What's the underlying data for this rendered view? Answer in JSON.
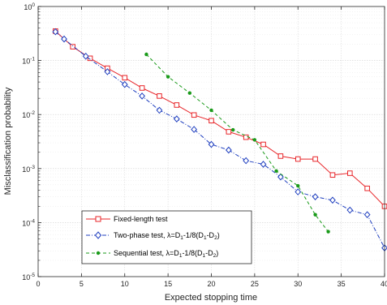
{
  "chart_data": {
    "type": "line",
    "xlabel": "Expected stopping time",
    "ylabel": "Misclassification probability",
    "xlim": [
      0,
      40
    ],
    "ylim": [
      1e-05,
      1
    ],
    "yscale": "log",
    "grid": true,
    "legend_position": "bottom-left",
    "x_ticks": [
      "0",
      "5",
      "10",
      "15",
      "20",
      "25",
      "30",
      "35",
      "40"
    ],
    "y_ticks": [
      {
        "base": "10",
        "exp": "0"
      },
      {
        "base": "10",
        "exp": "-1"
      },
      {
        "base": "10",
        "exp": "-2"
      },
      {
        "base": "10",
        "exp": "-3"
      },
      {
        "base": "10",
        "exp": "-4"
      },
      {
        "base": "10",
        "exp": "-5"
      }
    ],
    "series": [
      {
        "name": "Fixed-length test",
        "color": "#e8262a",
        "line_style": "solid",
        "marker": "square",
        "x": [
          2,
          4,
          6,
          8,
          10,
          12,
          14,
          16,
          18,
          20,
          22,
          24,
          26,
          28,
          30,
          32,
          34,
          36,
          38,
          40
        ],
        "y": [
          0.35,
          0.18,
          0.11,
          0.072,
          0.048,
          0.031,
          0.022,
          0.015,
          0.0098,
          0.0077,
          0.0048,
          0.0038,
          0.0028,
          0.0017,
          0.0015,
          0.0015,
          0.00076,
          0.00082,
          0.00043,
          0.0002
        ]
      },
      {
        "name_parts": {
          "prefix": "Two-phase test, λ=D",
          "sub1": "1",
          "mid": "-1/8(D",
          "sub2": "1",
          "mid2": "-D",
          "sub3": "2",
          "suffix": ")"
        },
        "color": "#1f3fbf",
        "line_style": "dashdot",
        "marker": "diamond",
        "x": [
          2,
          3,
          5.5,
          8,
          10,
          12,
          14,
          16,
          18,
          20,
          22,
          24,
          26,
          28,
          30,
          32,
          34,
          36,
          38,
          40
        ],
        "y": [
          0.34,
          0.25,
          0.12,
          0.062,
          0.036,
          0.022,
          0.012,
          0.0083,
          0.0053,
          0.0028,
          0.0022,
          0.0014,
          0.0012,
          0.0007,
          0.00037,
          0.0003,
          0.00026,
          0.00017,
          0.00014,
          3.4e-05
        ]
      },
      {
        "name_parts": {
          "prefix": "Sequential test, λ=D",
          "sub1": "1",
          "mid": "-1/8(D",
          "sub2": "1",
          "mid2": "-D",
          "sub3": "2",
          "suffix": ")"
        },
        "color": "#1a9a1a",
        "line_style": "dashed",
        "marker": "dot",
        "x": [
          12.5,
          15,
          17.5,
          20,
          22.5,
          25,
          27.5,
          30,
          32,
          33.5
        ],
        "y": [
          0.13,
          0.05,
          0.025,
          0.012,
          0.0052,
          0.0034,
          0.0009,
          0.00048,
          0.00014,
          6.8e-05
        ]
      }
    ]
  }
}
